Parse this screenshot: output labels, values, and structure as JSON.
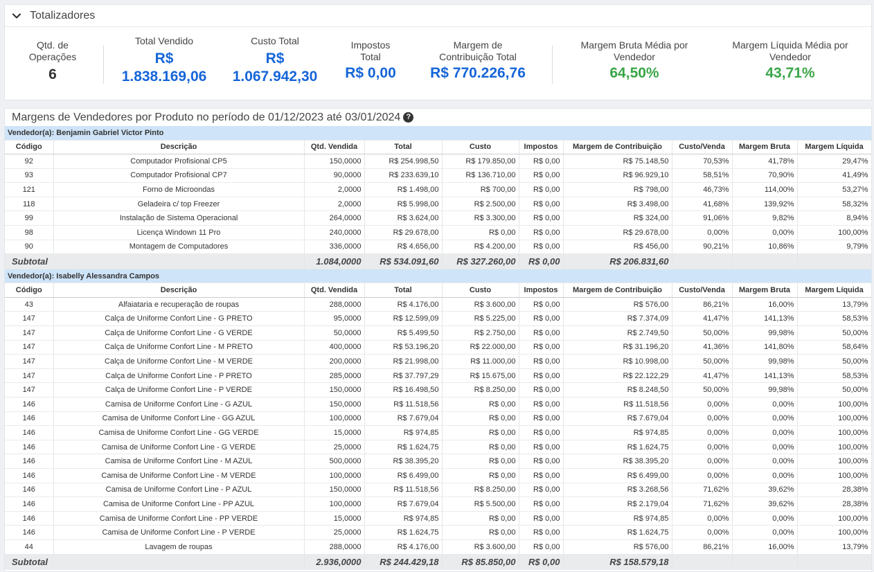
{
  "totalizadores": {
    "title": "Totalizadores",
    "qtd_label": "Qtd. de Operações",
    "qtd_value": "6",
    "total_vendido_label": "Total Vendido",
    "total_vendido_cur": "R$",
    "total_vendido_value": "1.838.169,06",
    "custo_total_label": "Custo Total",
    "custo_total_cur": "R$",
    "custo_total_value": "1.067.942,30",
    "impostos_label": "Impostos Total",
    "impostos_value": "R$ 0,00",
    "margem_contrib_label": "Margem de Contribuição Total",
    "margem_contrib_value": "R$ 770.226,76",
    "margem_bruta_label": "Margem Bruta Média por Vendedor",
    "margem_bruta_value": "64,50%",
    "margem_liquida_label": "Margem Líquida Média por Vendedor",
    "margem_liquida_value": "43,71%",
    "colors": {
      "blue": "#1565d8",
      "green": "#3aa547"
    }
  },
  "margens": {
    "title": "Margens de Vendedores por Produto no período de 01/12/2023 até 03/01/2024",
    "help_icon": "question-circle-icon",
    "columns": [
      "Código",
      "Descrição",
      "Qtd. Vendida",
      "Total",
      "Custo",
      "Impostos",
      "Margem de Contribuição",
      "Custo/Venda",
      "Margem Bruta",
      "Margem Líquida"
    ],
    "subtotal_label": "Subtotal",
    "vendors": [
      {
        "label": "Vendedor(a): Benjamin Gabriel Victor Pinto",
        "rows": [
          [
            "92",
            "Computador Profisional CP5",
            "150,0000",
            "R$ 254.998,50",
            "R$ 179.850,00",
            "R$ 0,00",
            "R$ 75.148,50",
            "70,53%",
            "41,78%",
            "29,47%"
          ],
          [
            "93",
            "Computador Profisional CP7",
            "90,0000",
            "R$ 233.639,10",
            "R$ 136.710,00",
            "R$ 0,00",
            "R$ 96.929,10",
            "58,51%",
            "70,90%",
            "41,49%"
          ],
          [
            "121",
            "Forno de Microondas",
            "2,0000",
            "R$ 1.498,00",
            "R$ 700,00",
            "R$ 0,00",
            "R$ 798,00",
            "46,73%",
            "114,00%",
            "53,27%"
          ],
          [
            "118",
            "Geladeira c/ top Freezer",
            "2,0000",
            "R$ 5.998,00",
            "R$ 2.500,00",
            "R$ 0,00",
            "R$ 3.498,00",
            "41,68%",
            "139,92%",
            "58,32%"
          ],
          [
            "99",
            "Instalação de Sistema Operacional",
            "264,0000",
            "R$ 3.624,00",
            "R$ 3.300,00",
            "R$ 0,00",
            "R$ 324,00",
            "91,06%",
            "9,82%",
            "8,94%"
          ],
          [
            "98",
            "Licença Windown 11 Pro",
            "240,0000",
            "R$ 29.678,00",
            "R$ 0,00",
            "R$ 0,00",
            "R$ 29.678,00",
            "0,00%",
            "0,00%",
            "100,00%"
          ],
          [
            "90",
            "Montagem de Computadores",
            "336,0000",
            "R$ 4.656,00",
            "R$ 4.200,00",
            "R$ 0,00",
            "R$ 456,00",
            "90,21%",
            "10,86%",
            "9,79%"
          ]
        ],
        "subtotal": [
          "1.084,0000",
          "R$ 534.091,60",
          "R$ 327.260,00",
          "R$ 0,00",
          "R$ 206.831,60"
        ]
      },
      {
        "label": "Vendedor(a): Isabelly Alessandra Campos",
        "rows": [
          [
            "43",
            "Alfaiataria e recuperação de roupas",
            "288,0000",
            "R$ 4.176,00",
            "R$ 3.600,00",
            "R$ 0,00",
            "R$ 576,00",
            "86,21%",
            "16,00%",
            "13,79%"
          ],
          [
            "147",
            "Calça de Uniforme Confort Line - G PRETO",
            "95,0000",
            "R$ 12.599,09",
            "R$ 5.225,00",
            "R$ 0,00",
            "R$ 7.374,09",
            "41,47%",
            "141,13%",
            "58,53%"
          ],
          [
            "147",
            "Calça de Uniforme Confort Line - G VERDE",
            "50,0000",
            "R$ 5.499,50",
            "R$ 2.750,00",
            "R$ 0,00",
            "R$ 2.749,50",
            "50,00%",
            "99,98%",
            "50,00%"
          ],
          [
            "147",
            "Calça de Uniforme Confort Line - M PRETO",
            "400,0000",
            "R$ 53.196,20",
            "R$ 22.000,00",
            "R$ 0,00",
            "R$ 31.196,20",
            "41,36%",
            "141,80%",
            "58,64%"
          ],
          [
            "147",
            "Calça de Uniforme Confort Line - M VERDE",
            "200,0000",
            "R$ 21.998,00",
            "R$ 11.000,00",
            "R$ 0,00",
            "R$ 10.998,00",
            "50,00%",
            "99,98%",
            "50,00%"
          ],
          [
            "147",
            "Calça de Uniforme Confort Line - P PRETO",
            "285,0000",
            "R$ 37.797,29",
            "R$ 15.675,00",
            "R$ 0,00",
            "R$ 22.122,29",
            "41,47%",
            "141,13%",
            "58,53%"
          ],
          [
            "147",
            "Calça de Uniforme Confort Line - P VERDE",
            "150,0000",
            "R$ 16.498,50",
            "R$ 8.250,00",
            "R$ 0,00",
            "R$ 8.248,50",
            "50,00%",
            "99,98%",
            "50,00%"
          ],
          [
            "146",
            "Camisa de Uniforme Confort Line - G AZUL",
            "150,0000",
            "R$ 11.518,56",
            "R$ 0,00",
            "R$ 0,00",
            "R$ 11.518,56",
            "0,00%",
            "0,00%",
            "100,00%"
          ],
          [
            "146",
            "Camisa de Uniforme Confort Line - GG AZUL",
            "100,0000",
            "R$ 7.679,04",
            "R$ 0,00",
            "R$ 0,00",
            "R$ 7.679,04",
            "0,00%",
            "0,00%",
            "100,00%"
          ],
          [
            "146",
            "Camisa de Uniforme Confort Line - GG VERDE",
            "15,0000",
            "R$ 974,85",
            "R$ 0,00",
            "R$ 0,00",
            "R$ 974,85",
            "0,00%",
            "0,00%",
            "100,00%"
          ],
          [
            "146",
            "Camisa de Uniforme Confort Line - G VERDE",
            "25,0000",
            "R$ 1.624,75",
            "R$ 0,00",
            "R$ 0,00",
            "R$ 1.624,75",
            "0,00%",
            "0,00%",
            "100,00%"
          ],
          [
            "146",
            "Camisa de Uniforme Confort Line - M AZUL",
            "500,0000",
            "R$ 38.395,20",
            "R$ 0,00",
            "R$ 0,00",
            "R$ 38.395,20",
            "0,00%",
            "0,00%",
            "100,00%"
          ],
          [
            "146",
            "Camisa de Uniforme Confort Line - M VERDE",
            "100,0000",
            "R$ 6.499,00",
            "R$ 0,00",
            "R$ 0,00",
            "R$ 6.499,00",
            "0,00%",
            "0,00%",
            "100,00%"
          ],
          [
            "146",
            "Camisa de Uniforme Confort Line - P AZUL",
            "150,0000",
            "R$ 11.518,56",
            "R$ 8.250,00",
            "R$ 0,00",
            "R$ 3.268,56",
            "71,62%",
            "39,62%",
            "28,38%"
          ],
          [
            "146",
            "Camisa de Uniforme Confort Line - PP AZUL",
            "100,0000",
            "R$ 7.679,04",
            "R$ 5.500,00",
            "R$ 0,00",
            "R$ 2.179,04",
            "71,62%",
            "39,62%",
            "28,38%"
          ],
          [
            "146",
            "Camisa de Uniforme Confort Line - PP VERDE",
            "15,0000",
            "R$ 974,85",
            "R$ 0,00",
            "R$ 0,00",
            "R$ 974,85",
            "0,00%",
            "0,00%",
            "100,00%"
          ],
          [
            "146",
            "Camisa de Uniforme Confort Line - P VERDE",
            "25,0000",
            "R$ 1.624,75",
            "R$ 0,00",
            "R$ 0,00",
            "R$ 1.624,75",
            "0,00%",
            "0,00%",
            "100,00%"
          ],
          [
            "44",
            "Lavagem de roupas",
            "288,0000",
            "R$ 4.176,00",
            "R$ 3.600,00",
            "R$ 0,00",
            "R$ 576,00",
            "86,21%",
            "16,00%",
            "13,79%"
          ]
        ],
        "subtotal": [
          "2.936,0000",
          "R$ 244.429,18",
          "R$ 85.850,00",
          "R$ 0,00",
          "R$ 158.579,18"
        ]
      }
    ]
  }
}
